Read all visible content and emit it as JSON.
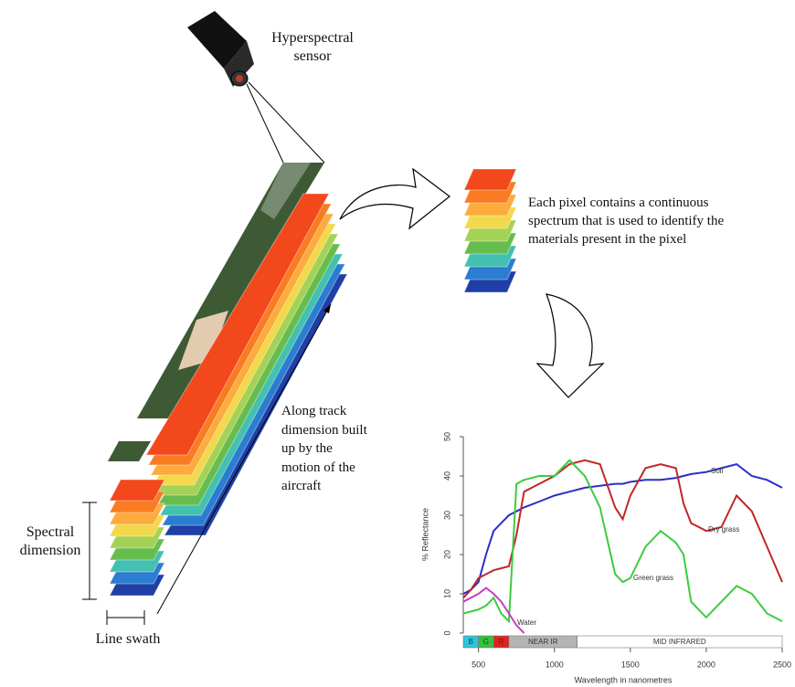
{
  "sensor_label": "Hyperspectral sensor",
  "pixel_caption": "Each pixel contains a continuous spectrum that is used to identify the materials present in the pixel",
  "track_caption": "Along track dimension built up by the motion of the aircraft",
  "spectral_label": "Spectral dimension",
  "swath_label": "Line swath",
  "chart_data": {
    "type": "line",
    "xlabel": "Wavelength in nanometres",
    "ylabel": "% Reflectance",
    "x": [
      400,
      450,
      500,
      550,
      600,
      650,
      700,
      750,
      800,
      900,
      1000,
      1100,
      1200,
      1300,
      1400,
      1450,
      1500,
      1600,
      1700,
      1800,
      1850,
      1900,
      2000,
      2100,
      2200,
      2300,
      2400,
      2500
    ],
    "xlim": [
      400,
      2500
    ],
    "xticks": [
      500,
      1000,
      1500,
      2000,
      2500
    ],
    "ylim": [
      0,
      50
    ],
    "yticks": [
      0,
      10,
      20,
      30,
      40,
      50
    ],
    "series": [
      {
        "name": "Soil",
        "color": "#2b2fc4",
        "values": [
          10,
          11,
          13,
          20,
          26,
          28,
          30,
          31,
          32,
          33.5,
          35,
          36,
          37,
          37.5,
          38,
          38,
          38.5,
          39,
          39,
          39.5,
          40,
          40.5,
          41,
          42,
          43,
          40,
          39,
          37
        ]
      },
      {
        "name": "Dry grass",
        "color": "#c02828",
        "values": [
          9,
          11,
          14,
          15,
          16,
          16.5,
          17,
          25,
          36,
          38,
          40,
          43,
          44,
          43,
          32,
          29,
          35,
          42,
          43,
          42,
          33,
          28,
          26,
          27,
          35,
          31,
          22,
          13
        ]
      },
      {
        "name": "Green grass",
        "color": "#3ccc3c",
        "values": [
          5,
          5.5,
          6,
          7,
          9,
          5,
          3,
          38,
          39,
          40,
          40,
          44,
          40,
          32,
          15,
          13,
          14,
          22,
          26,
          23,
          20,
          8,
          4,
          8,
          12,
          10,
          5,
          3
        ]
      },
      {
        "name": "Water",
        "color": "#c83cc8",
        "values": [
          8,
          9,
          10,
          11.5,
          10,
          8,
          5,
          2,
          0,
          null,
          null,
          null,
          null,
          null,
          null,
          null,
          null,
          null,
          null,
          null,
          null,
          null,
          null,
          null,
          null,
          null,
          null,
          null
        ]
      }
    ],
    "bands": [
      {
        "label": "B",
        "range": [
          400,
          500
        ],
        "color": "#2cc6dc"
      },
      {
        "label": "G",
        "range": [
          500,
          600
        ],
        "color": "#36c03c"
      },
      {
        "label": "R",
        "range": [
          600,
          700
        ],
        "color": "#e02222"
      },
      {
        "label": "NEAR IR",
        "range": [
          700,
          1150
        ],
        "color": "#b4b4b4"
      },
      {
        "label": "MID INFRARED",
        "range": [
          1150,
          2500
        ],
        "color": "#ffffff"
      }
    ]
  }
}
